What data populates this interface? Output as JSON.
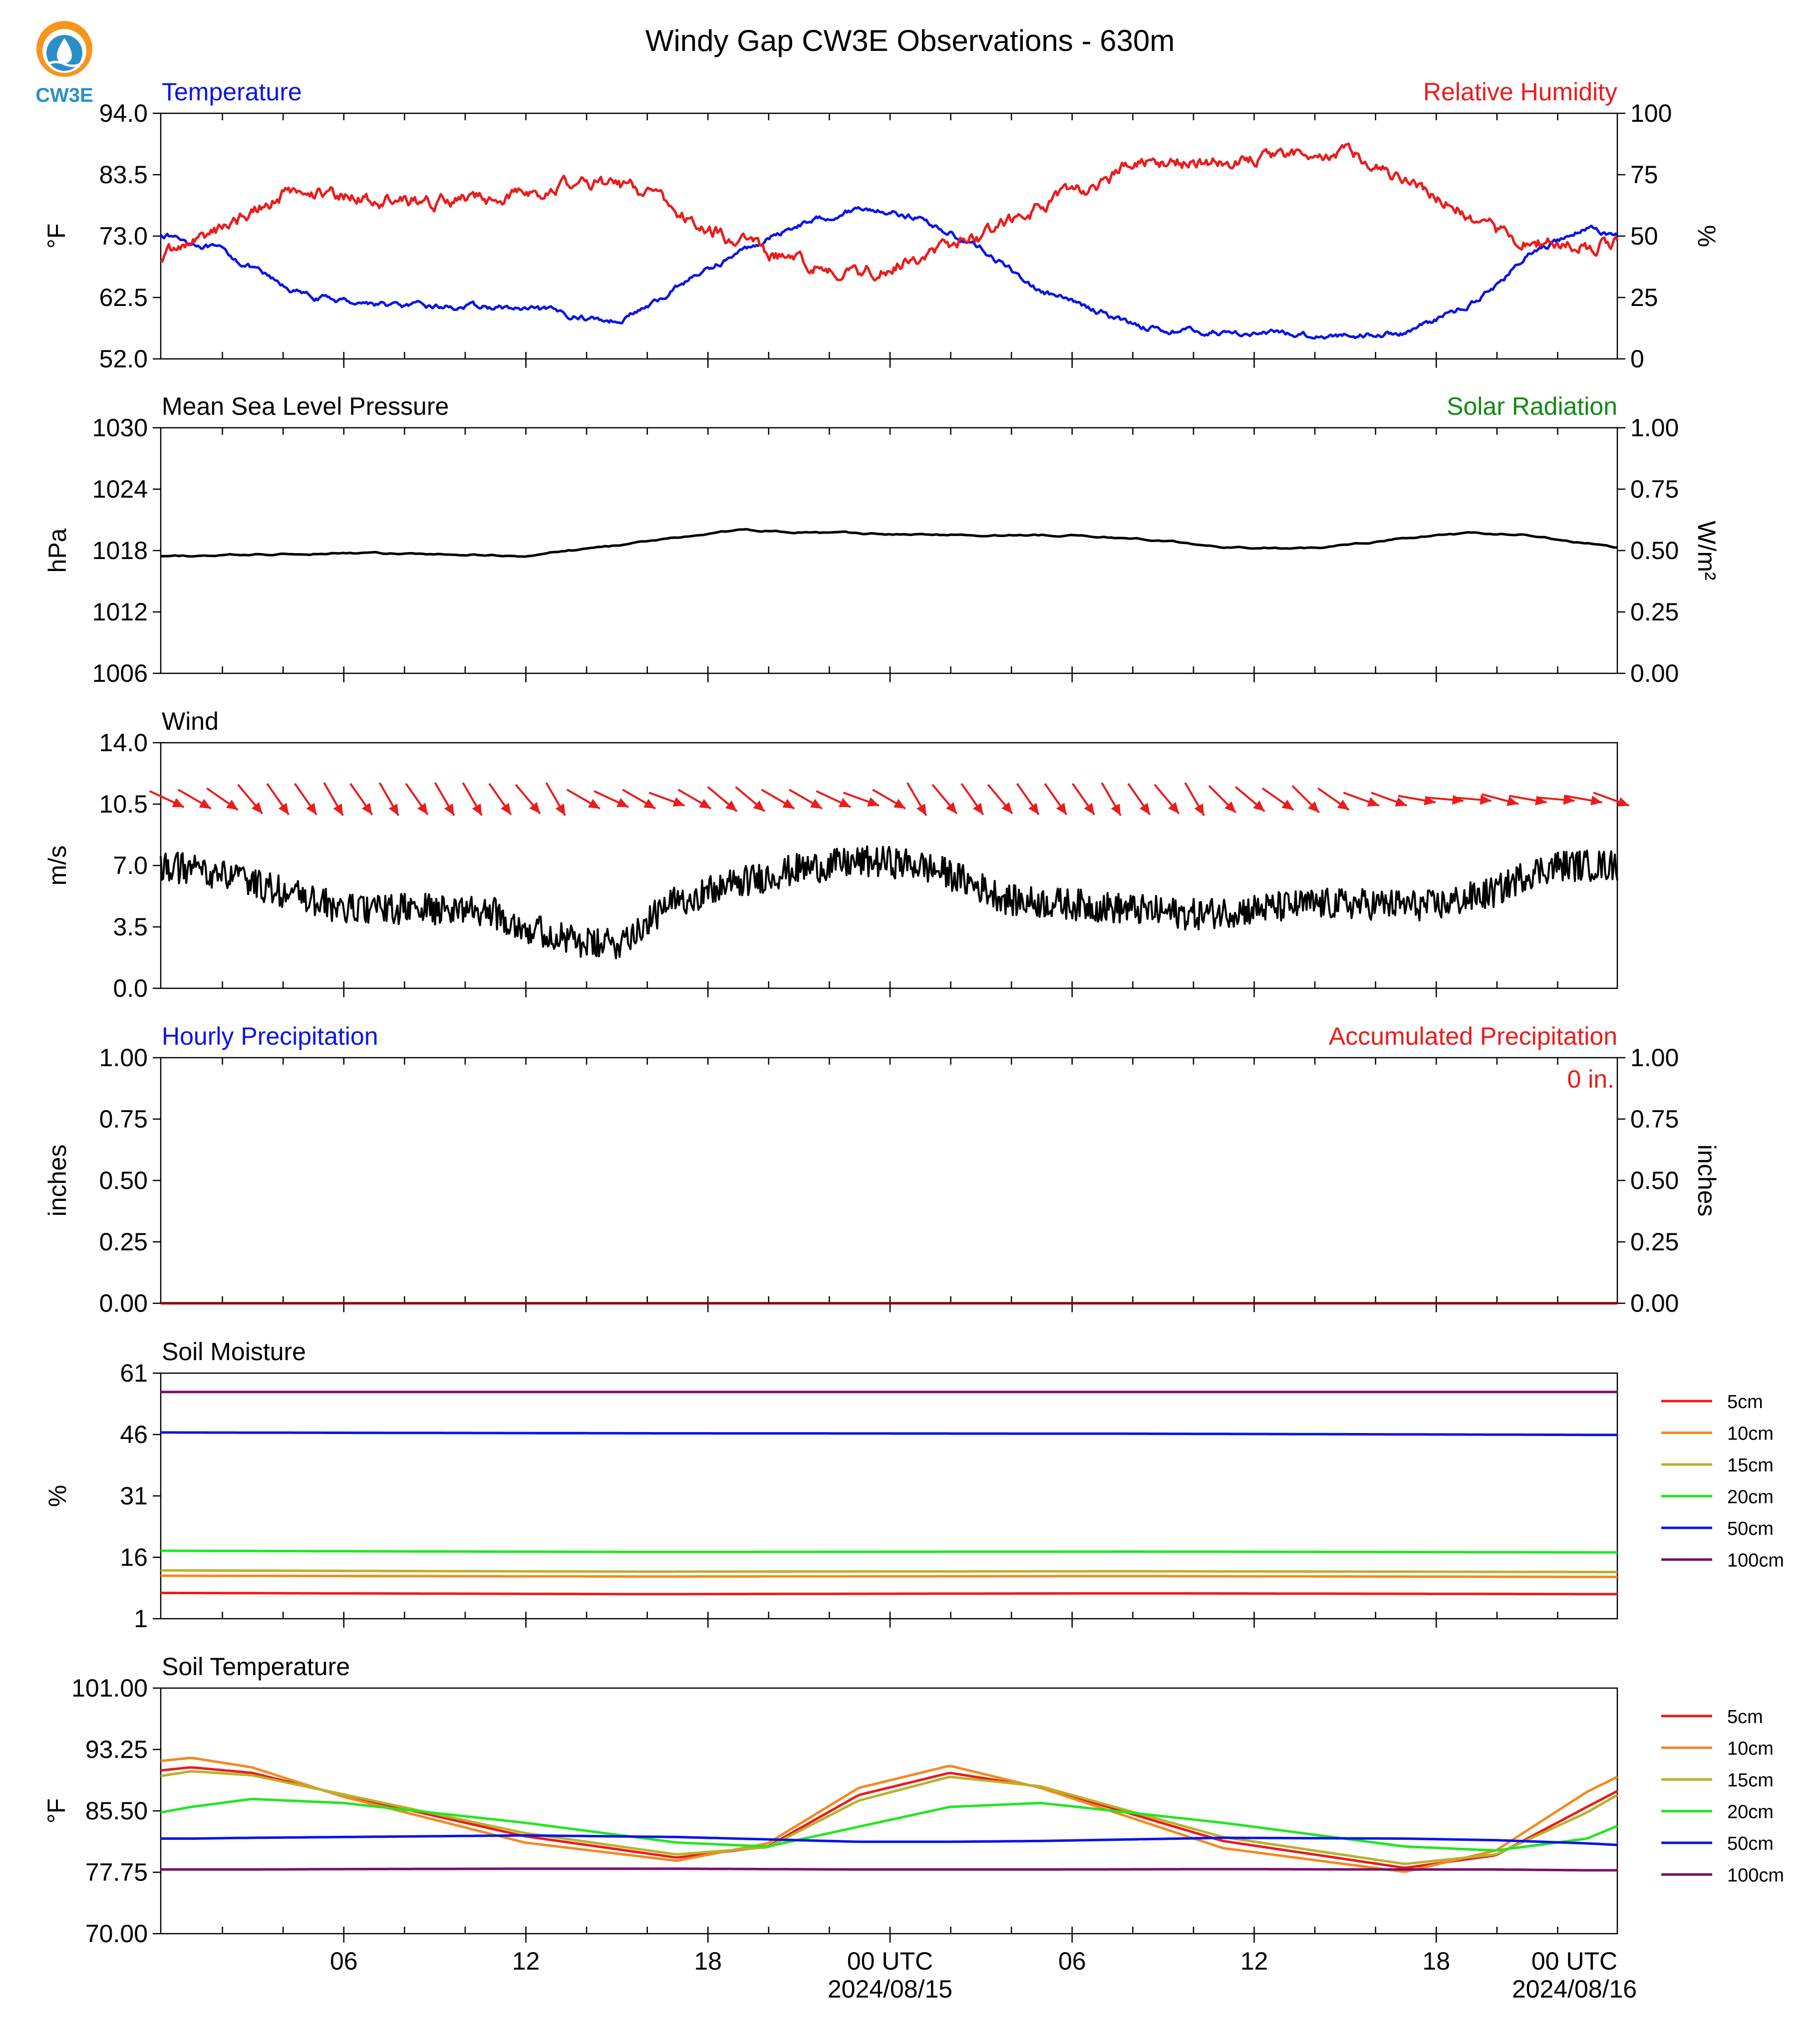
{
  "title": "Windy Gap CW3E Observations - 630m",
  "logo": {
    "text": "CW3E",
    "colors": {
      "orange": "#f7941d",
      "blue": "#2a8fc9",
      "dark": "#1a6aa0"
    }
  },
  "x_axis": {
    "ticks": [
      "06",
      "12",
      "18",
      "00 UTC",
      "06",
      "12",
      "18",
      "00 UTC"
    ],
    "dates": [
      "2024/08/15",
      "2024/08/16"
    ]
  },
  "chart_data": [
    {
      "type": "line",
      "title": "Temperature",
      "title_right": "Relative Humidity",
      "ylabel": "°F",
      "ylabel_right": "%",
      "ylim": [
        52,
        94
      ],
      "ylim_right": [
        0,
        100
      ],
      "yticks": [
        "52.0",
        "62.5",
        "73.0",
        "83.5",
        "94.0"
      ],
      "yticks_right": [
        "0",
        "25",
        "50",
        "75",
        "100"
      ],
      "x_hours": [
        0,
        2,
        4,
        5,
        8,
        11,
        13,
        14,
        15,
        16.5,
        17,
        19,
        21,
        23,
        24,
        25,
        27,
        29,
        31,
        32,
        33,
        35,
        37,
        38,
        39,
        41,
        43,
        44,
        45,
        47,
        47.9
      ],
      "series": [
        {
          "color": "#0a14e6",
          "axis": "left",
          "values": [
            73.5,
            70.5,
            64.5,
            62.5,
            61,
            60.8,
            60,
            59,
            58.5,
            62,
            64.5,
            70,
            75,
            77.8,
            77.2,
            76,
            71,
            63.5,
            60,
            58,
            57,
            56.5,
            56.3,
            56,
            56,
            56.5,
            61,
            64.5,
            69.5,
            74.5,
            73.2
          ]
        },
        {
          "color": "#ea1c1c",
          "axis": "right",
          "values": [
            42,
            53,
            67,
            68,
            64,
            65,
            70,
            72,
            71,
            66,
            59,
            48,
            39,
            35,
            38,
            42,
            50,
            62,
            72,
            79,
            80,
            80.5,
            81,
            84,
            84.5,
            74,
            60,
            52,
            48,
            46,
            48
          ]
        }
      ]
    },
    {
      "type": "line",
      "title": "Mean Sea Level Pressure",
      "title_right": "Solar Radiation",
      "ylabel": "hPa",
      "ylabel_right": "W/m²",
      "ylim": [
        1006,
        1030
      ],
      "ylim_right": [
        0,
        1
      ],
      "yticks": [
        "1006",
        "1012",
        "1018",
        "1024",
        "1030"
      ],
      "yticks_right": [
        "0.00",
        "0.25",
        "0.50",
        "0.75",
        "1.00"
      ],
      "x_hours": [
        0,
        3,
        6,
        9,
        12,
        15,
        18,
        19,
        21,
        24,
        27,
        30,
        33,
        35,
        38,
        41,
        43,
        45,
        48
      ],
      "series": [
        {
          "color": "#000000",
          "axis": "left",
          "values": [
            1017.4,
            1017.6,
            1017.8,
            1017.6,
            1017.5,
            1018.5,
            1019.6,
            1020.0,
            1019.8,
            1019.6,
            1019.5,
            1019.5,
            1019.0,
            1018.3,
            1018.2,
            1019.2,
            1019.7,
            1019.5,
            1018.3
          ]
        }
      ]
    },
    {
      "type": "line",
      "title": "Wind",
      "ylabel": "m/s",
      "ylim": [
        0,
        14
      ],
      "yticks": [
        "0.0",
        "3.5",
        "7.0",
        "10.5",
        "14.0"
      ],
      "x_hours": [
        0,
        2,
        4,
        6,
        8,
        10,
        11,
        12,
        14,
        15,
        17,
        19,
        21,
        23,
        24,
        25,
        26,
        28,
        30,
        32,
        34,
        36,
        38,
        40,
        42,
        44,
        45,
        46,
        48
      ],
      "series": [
        {
          "color": "#000000",
          "axis": "left",
          "values": [
            7.0,
            6.5,
            5.5,
            4.5,
            4.5,
            4.5,
            4.3,
            3.5,
            2.5,
            2.5,
            5.0,
            6.0,
            6.8,
            7.2,
            7.2,
            7.0,
            6.5,
            5.0,
            4.8,
            4.5,
            4.2,
            4.5,
            4.8,
            4.8,
            4.7,
            5.5,
            6.5,
            7.0,
            7.0
          ]
        }
      ],
      "barbs": {
        "color": "#ea1c1c",
        "directions_deg": [
          -25,
          -30,
          -35,
          -50,
          -55,
          -55,
          -60,
          -55,
          -60,
          -55,
          -60,
          -60,
          -55,
          -50,
          -60,
          -30,
          -25,
          -30,
          -20,
          -30,
          -40,
          -40,
          -30,
          -30,
          -25,
          -20,
          -30,
          -60,
          -50,
          -55,
          -50,
          -55,
          -55,
          -55,
          -60,
          -55,
          -50,
          -60,
          -45,
          -40,
          -35,
          -45,
          -35,
          -20,
          -20,
          -10,
          -5,
          -5,
          -15,
          -10,
          -5,
          -10,
          -20
        ]
      }
    },
    {
      "type": "line",
      "title": "Hourly Precipitation",
      "title_right": "Accumulated Precipitation",
      "annotation": "0 in.",
      "ylabel": "inches",
      "ylabel_right": "inches",
      "ylim": [
        0,
        1
      ],
      "ylim_right": [
        0,
        1
      ],
      "yticks": [
        "0.00",
        "0.25",
        "0.50",
        "0.75",
        "1.00"
      ],
      "yticks_right": [
        "0.00",
        "0.25",
        "0.50",
        "0.75",
        "1.00"
      ],
      "x_hours": [
        0,
        48
      ],
      "series": [
        {
          "color": "#8b0000",
          "axis": "left",
          "values": [
            0,
            0
          ]
        }
      ]
    },
    {
      "type": "line",
      "title": "Soil Moisture",
      "ylabel": "%",
      "ylim": [
        1,
        61
      ],
      "yticks": [
        "1",
        "16",
        "31",
        "46",
        "61"
      ],
      "x_hours": [
        0,
        16,
        32,
        48
      ],
      "series": [
        {
          "name": "5cm",
          "color": "#ea1c1c",
          "values": [
            7.3,
            7.0,
            7.2,
            7.0
          ]
        },
        {
          "name": "10cm",
          "color": "#f28a1f",
          "values": [
            11.5,
            11.3,
            11.4,
            11.2
          ]
        },
        {
          "name": "15cm",
          "color": "#b8b22a",
          "values": [
            12.8,
            12.5,
            12.6,
            12.4
          ]
        },
        {
          "name": "20cm",
          "color": "#22e622",
          "values": [
            17.6,
            17.3,
            17.4,
            17.2
          ]
        },
        {
          "name": "50cm",
          "color": "#0a14e6",
          "values": [
            46.5,
            46.3,
            46.2,
            45.9
          ]
        },
        {
          "name": "100cm",
          "color": "#7b0f6b",
          "values": [
            56.4,
            56.4,
            56.4,
            56.4
          ]
        }
      ]
    },
    {
      "type": "line",
      "title": "Soil Temperature",
      "ylabel": "°F",
      "ylim": [
        70,
        101
      ],
      "yticks": [
        "70.00",
        "77.75",
        "85.50",
        "93.25",
        "101.00"
      ],
      "x_hours": [
        0,
        1,
        3,
        6,
        12,
        17,
        20,
        23,
        26,
        29,
        35,
        41,
        44,
        47,
        48
      ],
      "series": [
        {
          "name": "5cm",
          "color": "#ea1c1c",
          "values": [
            90.6,
            91.0,
            90.3,
            87.5,
            82.3,
            79.6,
            81.0,
            87.5,
            90.3,
            88.5,
            81.7,
            78.3,
            79.9,
            86.0,
            88.0
          ]
        },
        {
          "name": "10cm",
          "color": "#f28a1f",
          "values": [
            91.8,
            92.2,
            91.0,
            87.3,
            81.5,
            79.2,
            81.4,
            88.4,
            91.2,
            88.4,
            80.8,
            77.8,
            80.5,
            87.9,
            89.8
          ]
        },
        {
          "name": "15cm",
          "color": "#b8b22a",
          "values": [
            89.9,
            90.5,
            90.0,
            87.6,
            82.7,
            80.0,
            80.9,
            86.8,
            89.8,
            88.6,
            82.2,
            78.8,
            80.0,
            85.3,
            87.5
          ]
        },
        {
          "name": "20cm",
          "color": "#22e622",
          "values": [
            85.3,
            86.0,
            87.0,
            86.5,
            84.0,
            81.5,
            81.0,
            83.5,
            86.0,
            86.5,
            84.0,
            81.0,
            80.5,
            82.0,
            83.6
          ]
        },
        {
          "name": "50cm",
          "color": "#0a14e6",
          "values": [
            82.0,
            82.0,
            82.1,
            82.2,
            82.4,
            82.2,
            81.9,
            81.6,
            81.6,
            81.7,
            82.1,
            82.0,
            81.8,
            81.4,
            81.2
          ]
        },
        {
          "name": "100cm",
          "color": "#7b0f6b",
          "values": [
            78.1,
            78.1,
            78.1,
            78.15,
            78.2,
            78.2,
            78.15,
            78.1,
            78.1,
            78.1,
            78.15,
            78.1,
            78.1,
            78.0,
            78.0
          ]
        }
      ]
    }
  ]
}
